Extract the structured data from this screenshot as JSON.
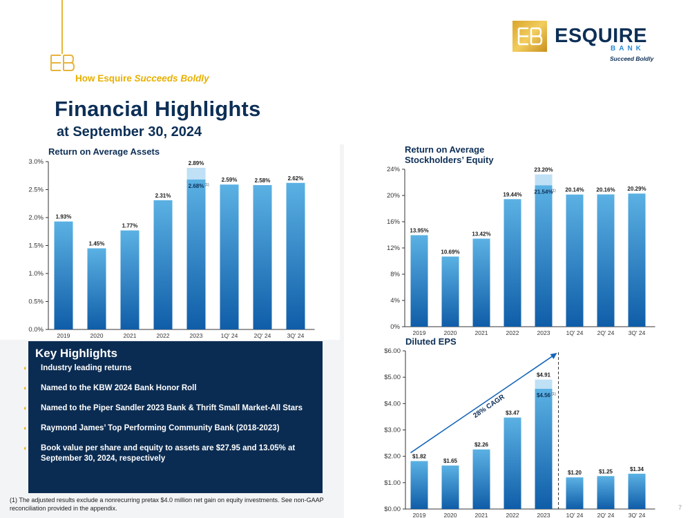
{
  "header": {
    "tagline_prefix": "How Esquire",
    "tagline_emphasis": "Succeeds Boldly",
    "title": "Financial Highlights",
    "subtitle": "at September 30, 2024"
  },
  "logo": {
    "word": "ESQUIRE",
    "bank": "BANK",
    "tagline": "Succeed Boldly"
  },
  "colors": {
    "navy": "#0d2f56",
    "gold": "#e7b000",
    "bar_top": "#5bb1e3",
    "bar_bottom": "#0f5da8",
    "bar_highlight": "#bfe0f5"
  },
  "key_highlights": {
    "title": "Key Highlights",
    "items": [
      "Industry leading returns",
      "Named to the KBW 2024 Bank Honor Roll",
      "Named to the Piper Sandler 2023 Bank & Thrift Small Market-All Stars",
      "Raymond James’ Top Performing Community Bank (2018-2023)",
      "Book value per share and equity to assets are $27.95 and 13.05% at September 30, 2024, respectively"
    ]
  },
  "footnote": "(1) The adjusted results exclude a nonrecurring pretax $4.0 million net gain on equity investments. See non-GAAP reconciliation provided in the appendix.",
  "page_number": "7",
  "chart_data": [
    {
      "type": "bar",
      "title": "Return on Average Assets",
      "categories": [
        "2019",
        "2020",
        "2021",
        "2022",
        "2023",
        "1Q' 24",
        "2Q' 24",
        "3Q' 24"
      ],
      "values": [
        1.93,
        1.45,
        1.77,
        2.31,
        2.89,
        2.59,
        2.58,
        2.62
      ],
      "labels": [
        "1.93%",
        "1.45%",
        "1.77%",
        "2.31%",
        "2.89%",
        "2.59%",
        "2.58%",
        "2.62%"
      ],
      "adjusted": {
        "category": "2023",
        "value": 2.68,
        "label": "2.68%",
        "note": "(1)"
      },
      "ylim": [
        0,
        3.0
      ],
      "yticks": [
        0,
        0.5,
        1.0,
        1.5,
        2.0,
        2.5,
        3.0
      ],
      "ytick_labels": [
        "0.0%",
        "0.5%",
        "1.0%",
        "1.5%",
        "2.0%",
        "2.5%",
        "3.0%"
      ],
      "grid": false
    },
    {
      "type": "bar",
      "title": "Return on Average Stockholders’ Equity",
      "title_lines": [
        "Return on Average",
        "Stockholders’ Equity"
      ],
      "categories": [
        "2019",
        "2020",
        "2021",
        "2022",
        "2023",
        "1Q' 24",
        "2Q' 24",
        "3Q' 24"
      ],
      "values": [
        13.95,
        10.69,
        13.42,
        19.44,
        23.2,
        20.14,
        20.16,
        20.29
      ],
      "labels": [
        "13.95%",
        "10.69%",
        "13.42%",
        "19.44%",
        "23.20%",
        "20.14%",
        "20.16%",
        "20.29%"
      ],
      "adjusted": {
        "category": "2023",
        "value": 21.54,
        "label": "21.54%",
        "note": "(1)"
      },
      "ylim": [
        0,
        24
      ],
      "yticks": [
        0,
        4,
        8,
        12,
        16,
        20,
        24
      ],
      "ytick_labels": [
        "0%",
        "4%",
        "8%",
        "12%",
        "16%",
        "20%",
        "24%"
      ],
      "grid": false
    },
    {
      "type": "bar",
      "title": "Diluted EPS",
      "categories": [
        "2019",
        "2020",
        "2021",
        "2022",
        "2023",
        "1Q' 24",
        "2Q' 24",
        "3Q' 24"
      ],
      "values": [
        1.82,
        1.65,
        2.26,
        3.47,
        4.91,
        1.2,
        1.25,
        1.34
      ],
      "labels": [
        "$1.82",
        "$1.65",
        "$2.26",
        "$3.47",
        "$4.91",
        "$1.20",
        "$1.25",
        "$1.34"
      ],
      "adjusted": {
        "category": "2023",
        "value": 4.56,
        "label": "$4.56",
        "note": "(1)"
      },
      "ylim": [
        0,
        6.0
      ],
      "yticks": [
        0,
        1,
        2,
        3,
        4,
        5,
        6
      ],
      "ytick_labels": [
        "$0.00",
        "$1.00",
        "$2.00",
        "$3.00",
        "$4.00",
        "$5.00",
        "$6.00"
      ],
      "annotation": "28% CAGR",
      "grid": false
    }
  ]
}
